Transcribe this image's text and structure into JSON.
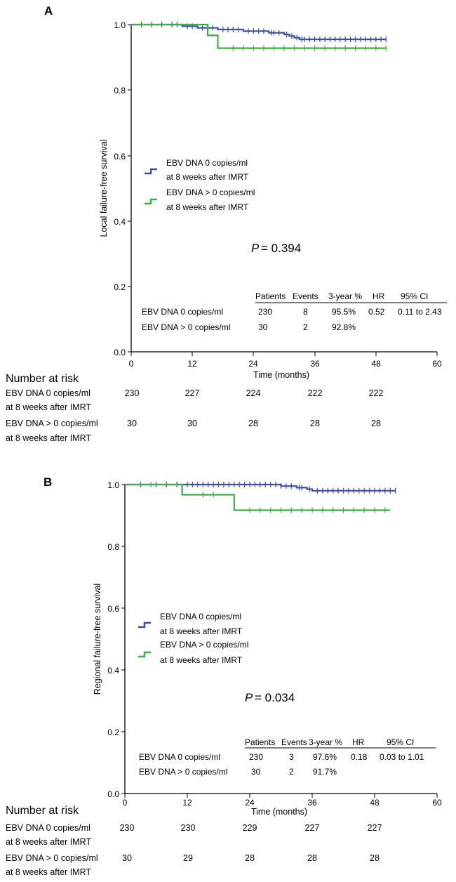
{
  "chart_data": [
    {
      "panel": "A",
      "type": "line",
      "subtype": "kaplan-meier",
      "ylabel": "Local failure-free survival",
      "xlabel": "Time (months)",
      "xlim": [
        0,
        60
      ],
      "ylim": [
        0,
        1.0
      ],
      "xticks": [
        "0",
        "12",
        "24",
        "36",
        "48",
        "60"
      ],
      "yticks": [
        "0.0",
        "0.2",
        "0.4",
        "0.6",
        "0.8",
        "1.0"
      ],
      "series": [
        {
          "name": "EBV DNA 0 copies/ml",
          "name2": "at 8 weeks after IMRT",
          "color": "#3a4fa0",
          "steps": [
            [
              0,
              1.0
            ],
            [
              10,
              0.995
            ],
            [
              13,
              0.99
            ],
            [
              17,
              0.985
            ],
            [
              22,
              0.98
            ],
            [
              27,
              0.975
            ],
            [
              30,
              0.97
            ],
            [
              31,
              0.965
            ],
            [
              32,
              0.96
            ],
            [
              33,
              0.955
            ],
            [
              50,
              0.955
            ]
          ],
          "censor": [
            2,
            4,
            6,
            8,
            9,
            11,
            12,
            14,
            15,
            16,
            18,
            19,
            20,
            21,
            23,
            24,
            25,
            26,
            27.5,
            28,
            29,
            30.5,
            31.5,
            32.5,
            33.5,
            34,
            35,
            36,
            37,
            38,
            39,
            40,
            41,
            42,
            43,
            44,
            45,
            46,
            47,
            48,
            49,
            50
          ]
        },
        {
          "name": "EBV DNA > 0 copies/ml",
          "name2": "at 8 weeks after IMRT",
          "color": "#3cae48",
          "steps": [
            [
              0,
              1.0
            ],
            [
              15,
              0.967
            ],
            [
              17,
              0.928
            ],
            [
              50,
              0.928
            ]
          ],
          "censor": [
            20,
            22,
            24,
            26,
            28,
            30,
            32,
            34,
            36,
            38,
            40,
            42,
            44,
            46,
            48,
            50
          ]
        }
      ],
      "pvalue_label": "P",
      "pvalue": "= 0.394",
      "stats_table": {
        "headers": [
          "Patients",
          "Events",
          "3-year %",
          "HR",
          "95% CI"
        ],
        "rows": [
          {
            "label": "EBV DNA 0 copies/ml",
            "patients": "230",
            "events": "8",
            "three_year": "95.5%",
            "hr": "0.52",
            "ci": "0.11 to 2.43"
          },
          {
            "label": "EBV DNA > 0 copies/ml",
            "patients": "30",
            "events": "2",
            "three_year": "92.8%",
            "hr": "",
            "ci": ""
          }
        ]
      },
      "risk_table": {
        "title": "Number at risk",
        "rows": [
          {
            "label": "EBV DNA 0 copies/ml",
            "label2": "at 8 weeks after IMRT",
            "values": [
              "230",
              "227",
              "224",
              "222",
              "222"
            ]
          },
          {
            "label": "EBV DNA > 0 copies/ml",
            "label2": "at 8 weeks after IMRT",
            "values": [
              "30",
              "30",
              "28",
              "28",
              "28"
            ]
          }
        ]
      }
    },
    {
      "panel": "B",
      "type": "line",
      "subtype": "kaplan-meier",
      "ylabel": "Regional failure-free survival",
      "xlabel": "Time (months)",
      "xlim": [
        0,
        60
      ],
      "ylim": [
        0,
        1.0
      ],
      "xticks": [
        "0",
        "12",
        "24",
        "36",
        "48",
        "60"
      ],
      "yticks": [
        "0.0",
        "0.2",
        "0.4",
        "0.6",
        "0.8",
        "1.0"
      ],
      "series": [
        {
          "name": "EBV DNA 0 copies/ml",
          "name2": "at 8 weeks after IMRT",
          "color": "#3a4fa0",
          "steps": [
            [
              0,
              1.0
            ],
            [
              30,
              0.995
            ],
            [
              33,
              0.99
            ],
            [
              35,
              0.985
            ],
            [
              36,
              0.98
            ],
            [
              52,
              0.98
            ]
          ],
          "censor": [
            3,
            6,
            8,
            10,
            12,
            13,
            14,
            15,
            16,
            17,
            18,
            19,
            20,
            21,
            22,
            23,
            24,
            25,
            26,
            27,
            28,
            29,
            30,
            31,
            32,
            33.5,
            34,
            35.5,
            37,
            38,
            39,
            40,
            41,
            42,
            43,
            44,
            45,
            46,
            47,
            48,
            49,
            50,
            51,
            52
          ]
        },
        {
          "name": "EBV DNA > 0 copies/ml",
          "name2": "at 8 weeks after IMRT",
          "color": "#3cae48",
          "steps": [
            [
              0,
              1.0
            ],
            [
              11,
              0.967
            ],
            [
              21,
              0.917
            ],
            [
              51,
              0.917
            ]
          ],
          "censor": [
            5,
            15,
            17,
            24,
            26,
            28,
            30,
            32,
            34,
            36,
            38,
            40,
            42,
            44,
            46,
            48,
            50
          ]
        }
      ],
      "pvalue_label": "P",
      "pvalue": "= 0.034",
      "stats_table": {
        "headers": [
          "Patients",
          "Events",
          "3-year %",
          "HR",
          "95% CI"
        ],
        "rows": [
          {
            "label": "EBV DNA 0 copies/ml",
            "patients": "230",
            "events": "3",
            "three_year": "97.6%",
            "hr": "0.18",
            "ci": "0.03 to 1.01"
          },
          {
            "label": "EBV DNA > 0 copies/ml",
            "patients": "30",
            "events": "2",
            "three_year": "91.7%",
            "hr": "",
            "ci": ""
          }
        ]
      },
      "risk_table": {
        "title": "Number at risk",
        "rows": [
          {
            "label": "EBV DNA 0 copies/ml",
            "label2": "at 8 weeks after IMRT",
            "values": [
              "230",
              "230",
              "229",
              "227",
              "227"
            ]
          },
          {
            "label": "EBV DNA > 0 copies/ml",
            "label2": "at 8 weeks after IMRT",
            "values": [
              "30",
              "29",
              "28",
              "28",
              "28"
            ]
          }
        ]
      }
    }
  ]
}
